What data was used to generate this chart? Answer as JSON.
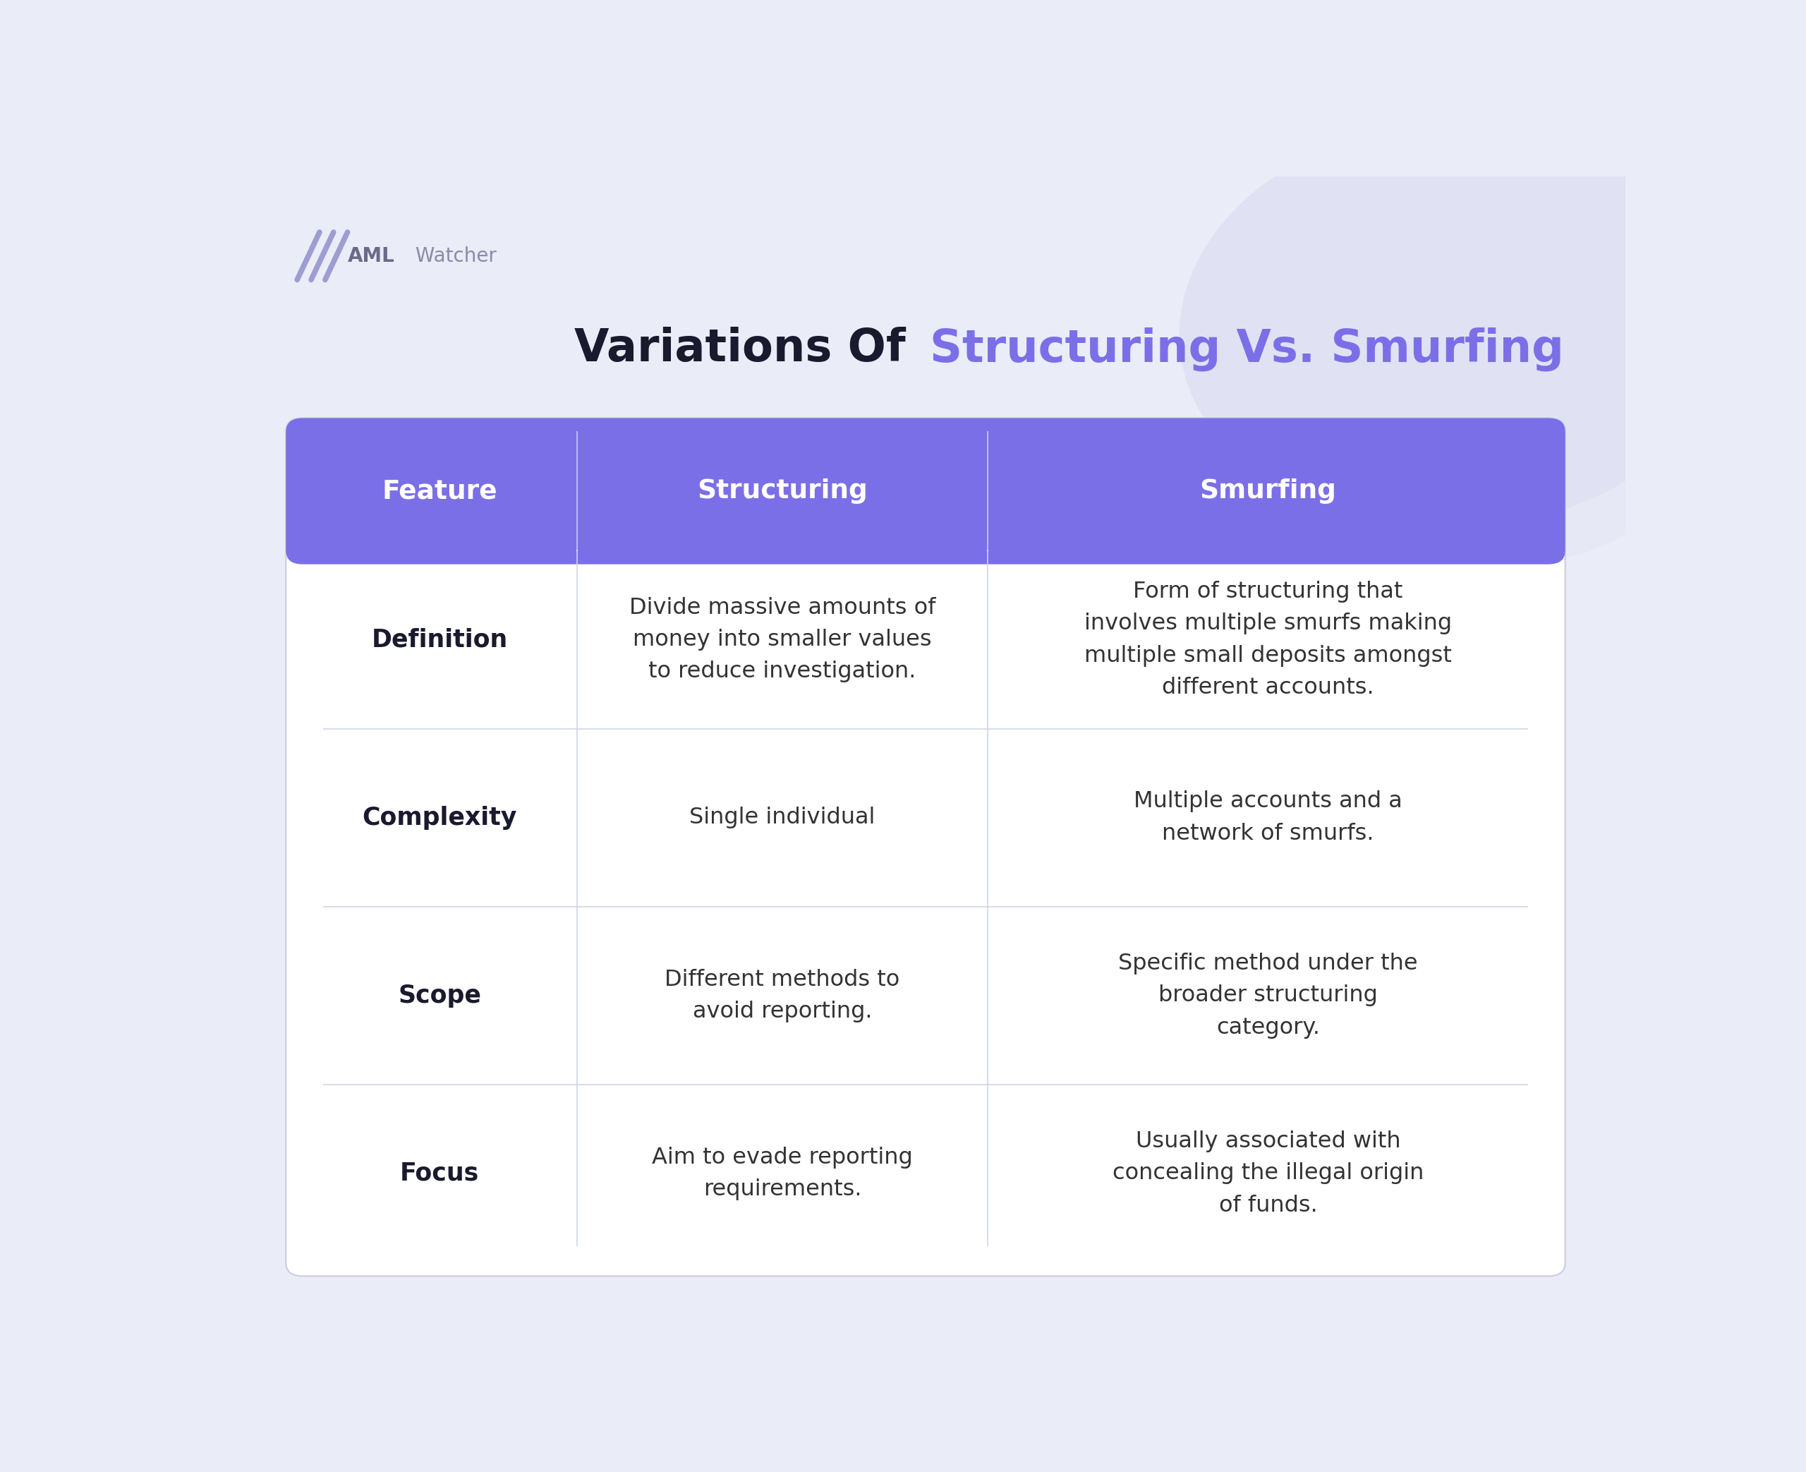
{
  "title_black": "Variations Of ",
  "title_purple": "Structuring Vs. Smurfing",
  "background_color": "#eaecf7",
  "header_bg": "#7B6FE8",
  "header_text_color": "#ffffff",
  "header_labels": [
    "Feature",
    "Structuring",
    "Smurfing"
  ],
  "row_labels": [
    "Definition",
    "Complexity",
    "Scope",
    "Focus"
  ],
  "structuring_col": [
    "Divide massive amounts of\nmoney into smaller values\nto reduce investigation.",
    "Single individual",
    "Different methods to\navoid reporting.",
    "Aim to evade reporting\nrequirements."
  ],
  "smurfing_col": [
    "Form of structuring that\ninvolves multiple smurfs making\nmultiple small deposits amongst\ndifferent accounts.",
    "Multiple accounts and a\nnetwork of smurfs.",
    "Specific method under the\nbroader structuring\ncategory.",
    "Usually associated with\nconcealing the illegal origin\nof funds."
  ],
  "divider_color": "#d0d4e8",
  "row_label_color": "#1a1a2e",
  "cell_text_color": "#333333",
  "title_dark_color": "#1a1a2e",
  "title_purple_color": "#7B6FE8",
  "logo_aml_color": "#6a6a8a",
  "logo_watcher_color": "#8a8aaa",
  "logo_stripe_color": "#9090cc"
}
